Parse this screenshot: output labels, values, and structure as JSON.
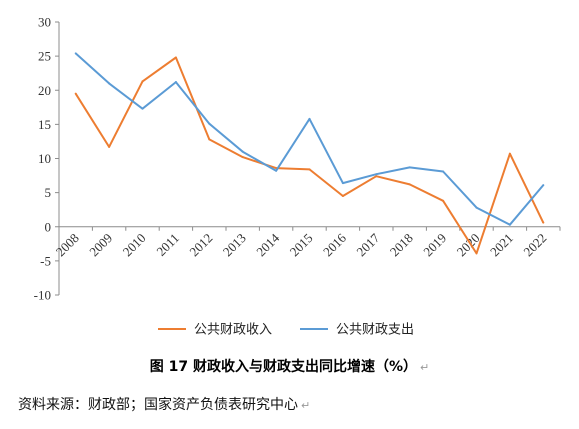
{
  "chart_data": {
    "type": "line",
    "categories": [
      "2008",
      "2009",
      "2010",
      "2011",
      "2012",
      "2013",
      "2014",
      "2015",
      "2016",
      "2017",
      "2018",
      "2019",
      "2020",
      "2021",
      "2022"
    ],
    "series": [
      {
        "name": "公共财政收入",
        "color": "#ED7D31",
        "values": [
          19.5,
          11.7,
          21.3,
          24.8,
          12.8,
          10.2,
          8.6,
          8.4,
          4.5,
          7.4,
          6.2,
          3.8,
          -3.9,
          10.7,
          0.6
        ]
      },
      {
        "name": "公共财政支出",
        "color": "#5B9BD5",
        "values": [
          25.4,
          21.0,
          17.3,
          21.2,
          15.1,
          11.0,
          8.2,
          15.8,
          6.4,
          7.7,
          8.7,
          8.1,
          2.8,
          0.3,
          6.1
        ]
      }
    ],
    "ylim": [
      -10,
      30
    ],
    "yticks": [
      "-10",
      "-5",
      "0",
      "5",
      "10",
      "15",
      "20",
      "25",
      "30"
    ],
    "grid": false,
    "legend_position": "bottom"
  },
  "caption": {
    "text": "图 17  财政收入与财政支出同比增速（%）"
  },
  "source": {
    "text": "资料来源：财政部；国家资产负债表研究中心"
  }
}
